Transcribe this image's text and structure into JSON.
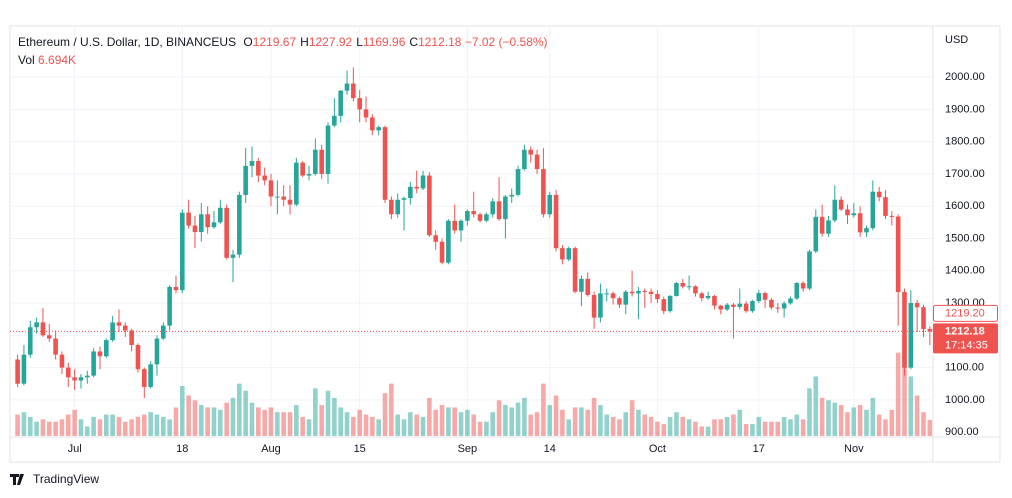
{
  "chart_data": {
    "type": "candlestick",
    "symbol": "Ethereum / U.S. Dollar, 1D, BINANCEUS",
    "legend_ohlc": [
      {
        "key": "O",
        "value": 1219.67
      },
      {
        "key": "H",
        "value": 1227.92
      },
      {
        "key": "L",
        "value": 1169.96
      },
      {
        "key": "C",
        "value": 1212.18
      }
    ],
    "change": {
      "value": -7.02,
      "label": "−7.02"
    },
    "change_pct": {
      "value": -0.58,
      "label": "(−0.58%)"
    },
    "volume_title": "Vol",
    "volume_last": {
      "value": 6.694,
      "label": "6.694K"
    },
    "currency": "USD",
    "brand": "TradingView",
    "up_color": "#26a69a",
    "down_color": "#ef5350",
    "xlim": [
      -1.2,
      144.5
    ],
    "ylim": [
      888,
      2146
    ],
    "xticks": [
      {
        "value": 9,
        "label": "Jul"
      },
      {
        "value": 26,
        "label": "18"
      },
      {
        "value": 40,
        "label": "Aug"
      },
      {
        "value": 54,
        "label": "15"
      },
      {
        "value": 71,
        "label": "Sep"
      },
      {
        "value": 84,
        "label": "14"
      },
      {
        "value": 101,
        "label": "Oct"
      },
      {
        "value": 117,
        "label": "17"
      },
      {
        "value": 132,
        "label": "Nov"
      }
    ],
    "yticks": [
      {
        "value": 900,
        "label": "900.00"
      },
      {
        "value": 1000,
        "label": "1000.00"
      },
      {
        "value": 1100,
        "label": "1100.00"
      },
      {
        "value": 1200,
        "label": "1200.00"
      },
      {
        "value": 1300,
        "label": "1300.00"
      },
      {
        "value": 1400,
        "label": "1400.00"
      },
      {
        "value": 1500,
        "label": "1500.00"
      },
      {
        "value": 1600,
        "label": "1600.00"
      },
      {
        "value": 1700,
        "label": "1700.00"
      },
      {
        "value": 1800,
        "label": "1800.00"
      },
      {
        "value": 1900,
        "label": "1900.00"
      },
      {
        "value": 2000,
        "label": "2000.00"
      }
    ],
    "prev_close": {
      "value": 1219.2,
      "label": "1219.20"
    },
    "last_price": {
      "value": 1212.18,
      "label": "1212.18"
    },
    "countdown": "17:14:35",
    "grid": true,
    "open": [
      1125,
      1050,
      1140,
      1225,
      1240,
      1200,
      1190,
      1140,
      1100,
      1070,
      1060,
      1070,
      1075,
      1150,
      1135,
      1185,
      1240,
      1230,
      1215,
      1170,
      1095,
      1040,
      1110,
      1190,
      1230,
      1350,
      1340,
      1580,
      1540,
      1520,
      1575,
      1535,
      1550,
      1595,
      1440,
      1450,
      1635,
      1725,
      1740,
      1695,
      1680,
      1630,
      1630,
      1620,
      1605,
      1735,
      1695,
      1700,
      1775,
      1700,
      1850,
      1880,
      1958,
      1980,
      1935,
      1900,
      1875,
      1835,
      1845,
      1620,
      1575,
      1620,
      1625,
      1660,
      1655,
      1695,
      1510,
      1490,
      1425,
      1555,
      1525,
      1555,
      1585,
      1575,
      1555,
      1575,
      1615,
      1560,
      1630,
      1635,
      1715,
      1775,
      1760,
      1715,
      1575,
      1635,
      1470,
      1435,
      1470,
      1335,
      1375,
      1325,
      1255,
      1330,
      1330,
      1315,
      1295,
      1335,
      1330,
      1337,
      1335,
      1328,
      1312,
      1275,
      1322,
      1362,
      1351,
      1352,
      1330,
      1315,
      1322,
      1292,
      1280,
      1295,
      1288,
      1298,
      1275,
      1306,
      1331,
      1310,
      1286,
      1283,
      1299,
      1314,
      1362,
      1345,
      1460,
      1567,
      1515,
      1556,
      1620,
      1590,
      1572,
      1578,
      1519,
      1532,
      1645,
      1628,
      1570,
      1568,
      1334,
      1100,
      1300,
      1287,
      1219.67
    ],
    "high": [
      1140,
      1170,
      1245,
      1255,
      1285,
      1235,
      1215,
      1150,
      1115,
      1095,
      1080,
      1090,
      1160,
      1165,
      1190,
      1260,
      1280,
      1240,
      1220,
      1175,
      1100,
      1120,
      1200,
      1240,
      1355,
      1385,
      1590,
      1620,
      1570,
      1610,
      1600,
      1585,
      1620,
      1605,
      1465,
      1645,
      1780,
      1785,
      1750,
      1720,
      1700,
      1680,
      1665,
      1665,
      1750,
      1740,
      1725,
      1810,
      1790,
      1860,
      1935,
      1960,
      2020,
      2030,
      1960,
      1940,
      1885,
      1850,
      1850,
      1630,
      1640,
      1630,
      1675,
      1710,
      1710,
      1705,
      1525,
      1500,
      1560,
      1605,
      1560,
      1590,
      1645,
      1580,
      1580,
      1625,
      1690,
      1635,
      1655,
      1725,
      1790,
      1785,
      1775,
      1780,
      1645,
      1650,
      1480,
      1475,
      1475,
      1385,
      1395,
      1335,
      1360,
      1345,
      1335,
      1320,
      1340,
      1400,
      1350,
      1345,
      1345,
      1340,
      1320,
      1325,
      1365,
      1375,
      1385,
      1355,
      1335,
      1335,
      1325,
      1295,
      1300,
      1300,
      1345,
      1305,
      1310,
      1340,
      1335,
      1315,
      1300,
      1305,
      1320,
      1365,
      1368,
      1465,
      1590,
      1605,
      1570,
      1665,
      1630,
      1605,
      1610,
      1600,
      1540,
      1680,
      1660,
      1650,
      1585,
      1575,
      1345,
      1340,
      1310,
      1295,
      1227.92
    ],
    "low": [
      1040,
      1045,
      1130,
      1205,
      1195,
      1180,
      1125,
      1080,
      1040,
      1030,
      1035,
      1050,
      1070,
      1095,
      1130,
      1180,
      1210,
      1195,
      1150,
      1085,
      1005,
      1035,
      1075,
      1185,
      1215,
      1330,
      1330,
      1530,
      1470,
      1490,
      1515,
      1530,
      1545,
      1435,
      1365,
      1440,
      1610,
      1690,
      1675,
      1665,
      1600,
      1575,
      1600,
      1575,
      1600,
      1690,
      1680,
      1695,
      1685,
      1670,
      1845,
      1860,
      1945,
      1925,
      1860,
      1860,
      1820,
      1820,
      1610,
      1560,
      1565,
      1525,
      1605,
      1640,
      1650,
      1505,
      1465,
      1420,
      1420,
      1515,
      1490,
      1540,
      1565,
      1550,
      1550,
      1565,
      1555,
      1500,
      1610,
      1630,
      1710,
      1735,
      1700,
      1565,
      1565,
      1460,
      1420,
      1430,
      1330,
      1290,
      1320,
      1220,
      1240,
      1305,
      1295,
      1285,
      1265,
      1320,
      1250,
      1285,
      1300,
      1300,
      1265,
      1270,
      1320,
      1345,
      1340,
      1320,
      1305,
      1310,
      1280,
      1265,
      1275,
      1190,
      1280,
      1270,
      1270,
      1300,
      1285,
      1280,
      1270,
      1255,
      1295,
      1310,
      1335,
      1340,
      1455,
      1505,
      1505,
      1550,
      1585,
      1545,
      1565,
      1505,
      1505,
      1525,
      1615,
      1560,
      1540,
      1230,
      1075,
      1095,
      1210,
      1195,
      1169.96
    ],
    "close": [
      1050,
      1140,
      1225,
      1240,
      1200,
      1190,
      1140,
      1100,
      1070,
      1060,
      1070,
      1075,
      1150,
      1135,
      1185,
      1240,
      1230,
      1215,
      1170,
      1095,
      1040,
      1110,
      1190,
      1230,
      1350,
      1340,
      1580,
      1540,
      1520,
      1575,
      1535,
      1550,
      1595,
      1440,
      1450,
      1635,
      1725,
      1740,
      1695,
      1680,
      1630,
      1630,
      1620,
      1605,
      1735,
      1695,
      1700,
      1775,
      1700,
      1850,
      1880,
      1958,
      1980,
      1935,
      1900,
      1875,
      1835,
      1845,
      1620,
      1575,
      1620,
      1625,
      1660,
      1655,
      1695,
      1510,
      1490,
      1425,
      1555,
      1525,
      1555,
      1585,
      1575,
      1555,
      1575,
      1615,
      1560,
      1630,
      1635,
      1715,
      1775,
      1760,
      1715,
      1575,
      1635,
      1470,
      1435,
      1470,
      1335,
      1375,
      1325,
      1255,
      1330,
      1330,
      1315,
      1295,
      1335,
      1330,
      1337,
      1335,
      1328,
      1312,
      1275,
      1322,
      1362,
      1351,
      1352,
      1330,
      1315,
      1322,
      1292,
      1280,
      1295,
      1288,
      1298,
      1275,
      1306,
      1331,
      1310,
      1286,
      1283,
      1299,
      1314,
      1362,
      1345,
      1460,
      1567,
      1515,
      1556,
      1620,
      1590,
      1572,
      1578,
      1519,
      1532,
      1645,
      1628,
      1570,
      1568,
      1334,
      1100,
      1300,
      1287,
      1219.2,
      1212.18
    ],
    "volume": [
      9,
      10,
      8,
      6,
      7,
      6,
      6,
      7,
      9,
      11,
      7,
      4,
      8,
      7,
      9,
      9,
      8,
      6,
      7,
      8,
      9,
      10,
      9,
      8,
      7,
      12,
      21,
      17,
      15,
      13,
      12,
      12,
      11,
      14,
      16,
      22,
      19,
      14,
      12,
      11,
      12,
      10,
      10,
      10,
      13,
      8,
      7,
      20,
      13,
      19,
      16,
      12,
      10,
      8,
      11,
      9,
      8,
      7,
      18,
      22,
      9,
      7,
      10,
      9,
      8,
      16,
      11,
      13,
      12,
      12,
      10,
      11,
      9,
      6,
      6,
      10,
      15,
      13,
      12,
      14,
      16,
      9,
      10,
      22,
      13,
      17,
      11,
      7,
      12,
      12,
      11,
      16,
      13,
      9,
      8,
      7,
      10,
      15,
      11,
      9,
      8,
      6,
      5,
      8,
      10,
      8,
      7,
      6,
      4,
      4,
      7,
      7,
      8,
      9,
      11,
      5,
      5,
      8,
      6,
      6,
      6,
      8,
      7,
      9,
      7,
      20,
      25,
      16,
      15,
      14,
      13,
      10,
      12,
      13,
      11,
      16,
      9,
      7,
      11,
      35,
      42,
      25,
      17,
      10,
      6.694
    ]
  }
}
